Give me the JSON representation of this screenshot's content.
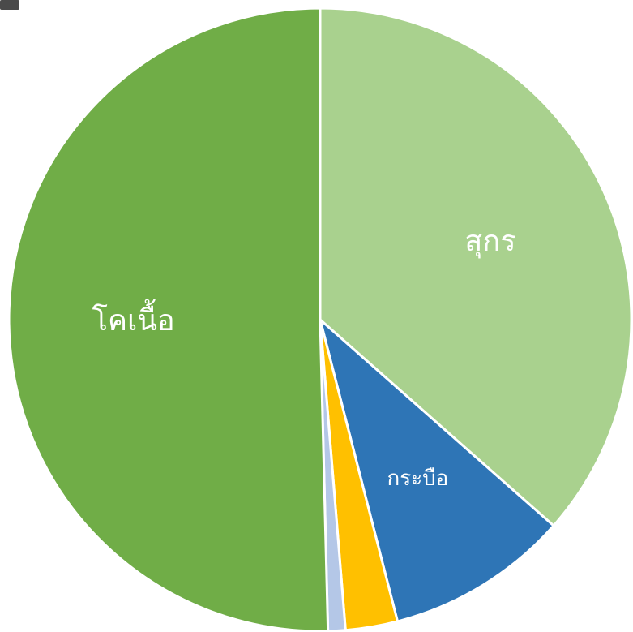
{
  "chart_data": {
    "type": "pie",
    "categories": [
      "สุกร",
      "กระบือ",
      null,
      null,
      "โคเนื้อ"
    ],
    "values": [
      36.5,
      9.5,
      2.7,
      0.9,
      50.4
    ],
    "colors": [
      "#a9d18e",
      "#2e75b6",
      "#ffc000",
      "#b4c7e7",
      "#70ad47"
    ],
    "label_color": "#ffffff"
  }
}
